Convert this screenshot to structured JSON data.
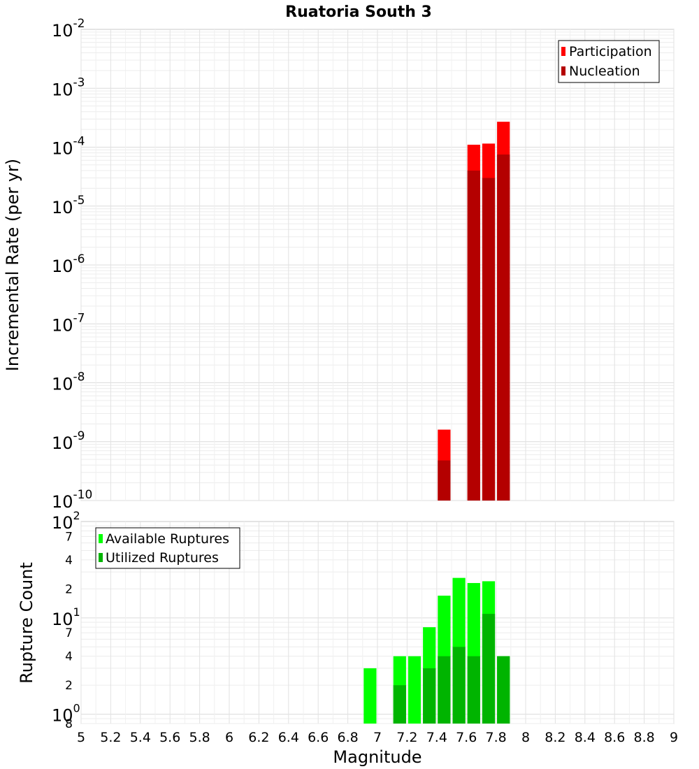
{
  "chart_data": {
    "type": "bar",
    "title": "Ruatoria South 3",
    "xlabel": "Magnitude",
    "xlim": [
      5,
      9
    ],
    "x_ticks": [
      "5",
      "5.2",
      "5.4",
      "5.6",
      "5.8",
      "6",
      "6.2",
      "6.4",
      "6.6",
      "6.8",
      "7",
      "7.2",
      "7.4",
      "7.6",
      "7.8",
      "8",
      "8.2",
      "8.4",
      "8.6",
      "8.8",
      "9"
    ],
    "bin_width": 0.1,
    "panels": [
      {
        "id": "rate",
        "ylabel": "Incremental Rate (per yr)",
        "yscale": "log",
        "ylim": [
          1e-10,
          0.01
        ],
        "y_ticks": [
          {
            "base": "10",
            "exp": "-2",
            "value": 0.01
          },
          {
            "base": "10",
            "exp": "-3",
            "value": 0.001
          },
          {
            "base": "10",
            "exp": "-4",
            "value": 0.0001
          },
          {
            "base": "10",
            "exp": "-5",
            "value": 1e-05
          },
          {
            "base": "10",
            "exp": "-6",
            "value": 1e-06
          },
          {
            "base": "10",
            "exp": "-7",
            "value": 1e-07
          },
          {
            "base": "10",
            "exp": "-8",
            "value": 1e-08
          },
          {
            "base": "10",
            "exp": "-9",
            "value": 1e-09
          },
          {
            "base": "10",
            "exp": "-10",
            "value": 1e-10
          }
        ],
        "legend_position": "top-right",
        "series": [
          {
            "name": "Participation",
            "color": "#ff0000",
            "x": [
              7.45,
              7.65,
              7.75,
              7.85
            ],
            "values": [
              1.6e-09,
              0.00011,
              0.000115,
              0.00027
            ]
          },
          {
            "name": "Nucleation",
            "color": "#b40000",
            "x": [
              7.45,
              7.65,
              7.75,
              7.85
            ],
            "values": [
              4.8e-10,
              4e-05,
              3e-05,
              7.5e-05
            ]
          }
        ]
      },
      {
        "id": "count",
        "ylabel": "Rupture Count",
        "yscale": "log",
        "ylim": [
          0.8,
          100
        ],
        "y_ticks": [
          {
            "base": "10",
            "exp": "2",
            "value": 100
          },
          {
            "base": "",
            "exp": "",
            "label": "7",
            "value": 70
          },
          {
            "base": "",
            "exp": "",
            "label": "4",
            "value": 40
          },
          {
            "base": "",
            "exp": "",
            "label": "2",
            "value": 20
          },
          {
            "base": "10",
            "exp": "1",
            "value": 10
          },
          {
            "base": "",
            "exp": "",
            "label": "7",
            "value": 7
          },
          {
            "base": "",
            "exp": "",
            "label": "4",
            "value": 4
          },
          {
            "base": "",
            "exp": "",
            "label": "2",
            "value": 2
          },
          {
            "base": "10",
            "exp": "0",
            "value": 1
          },
          {
            "base": "",
            "exp": "",
            "label": "8",
            "value": 0.8
          }
        ],
        "legend_position": "top-left",
        "series": [
          {
            "name": "Available Ruptures",
            "color": "#00ff00",
            "x": [
              6.95,
              7.15,
              7.25,
              7.35,
              7.45,
              7.55,
              7.65,
              7.75,
              7.85
            ],
            "values": [
              3,
              4,
              4,
              8,
              17,
              26,
              23,
              24,
              4
            ]
          },
          {
            "name": "Utilized Ruptures",
            "color": "#00b400",
            "x": [
              7.15,
              7.35,
              7.45,
              7.55,
              7.65,
              7.75,
              7.85
            ],
            "values": [
              2,
              3,
              4,
              5,
              4,
              11,
              4
            ]
          }
        ]
      }
    ]
  }
}
